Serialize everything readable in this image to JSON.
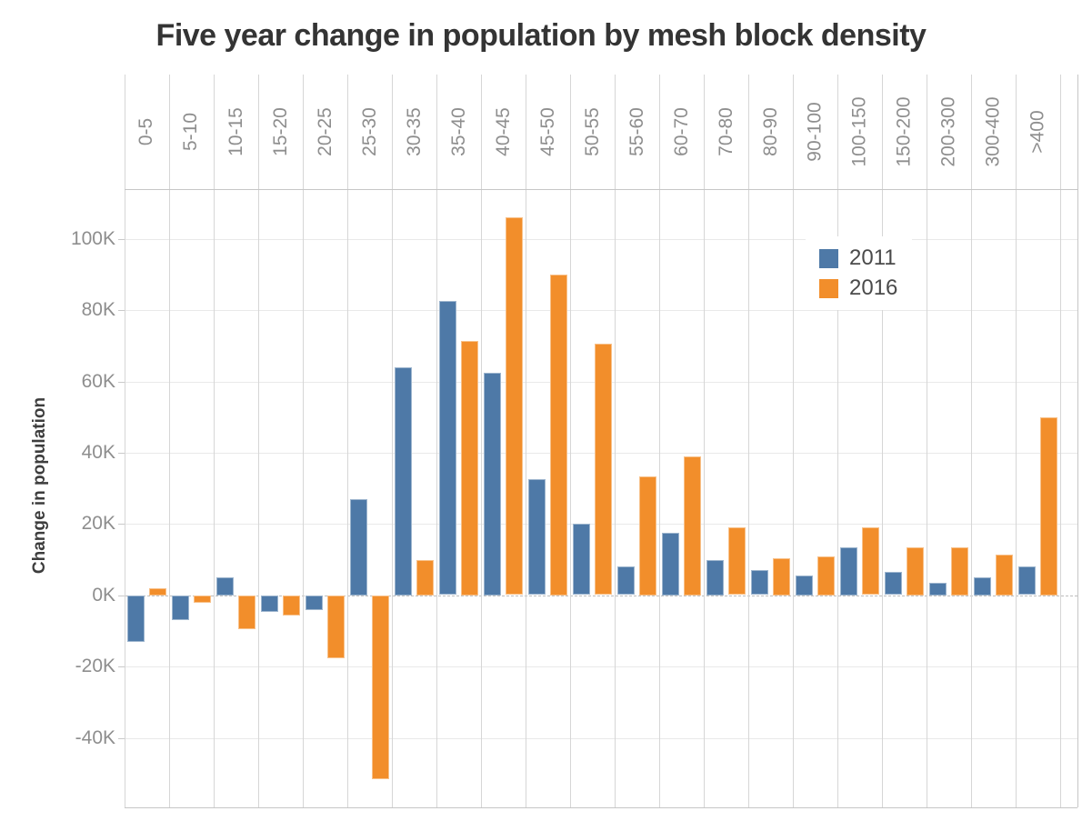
{
  "title": "Five year change in population by mesh block density",
  "colors": {
    "series_2011": "#4e79a7",
    "series_2016": "#f28e2b",
    "title_text": "#343434",
    "axis_label_text": "#3d3d3d",
    "tick_text": "#8e8e8e",
    "legend_text": "#4a4a4a",
    "gridline": "#e9e9e9",
    "column_separator": "#d6d6d6",
    "frame": "#c6c6c6",
    "zero_line": "#bdbdbd"
  },
  "chart_data": {
    "type": "bar",
    "title": "Five year change in population by mesh block density",
    "xlabel": "",
    "ylabel": "Change in population",
    "units": "thousands of people (K)",
    "grid": true,
    "legend_position": "inside-top-right",
    "categories": [
      "0-5",
      "5-10",
      "10-15",
      "15-20",
      "20-25",
      "25-30",
      "30-35",
      "35-40",
      "40-45",
      "45-50",
      "50-55",
      "55-60",
      "60-70",
      "70-80",
      "80-90",
      "90-100",
      "100-150",
      "150-200",
      "200-300",
      "300-400",
      ">400"
    ],
    "series": [
      {
        "name": "2011",
        "color": "#4e79a7",
        "values": [
          -13,
          -7,
          5,
          -4.5,
          -4,
          27,
          64,
          82.5,
          62.5,
          32.5,
          20,
          8,
          17.5,
          10,
          7,
          5.5,
          13.5,
          6.5,
          3.5,
          5,
          8
        ]
      },
      {
        "name": "2016",
        "color": "#f28e2b",
        "values": [
          2,
          -2,
          -9.5,
          -5.5,
          -17.5,
          -51.5,
          10,
          71.5,
          106,
          90,
          70.5,
          33.5,
          39,
          19,
          10.5,
          11,
          19,
          13.5,
          13.5,
          11.5,
          50
        ]
      }
    ],
    "y_ticks": [
      {
        "label": "100K",
        "value": 100
      },
      {
        "label": "80K",
        "value": 80
      },
      {
        "label": "60K",
        "value": 60
      },
      {
        "label": "40K",
        "value": 40
      },
      {
        "label": "20K",
        "value": 20
      },
      {
        "label": "0K",
        "value": 0
      },
      {
        "label": "-20K",
        "value": -20
      },
      {
        "label": "-40K",
        "value": -40
      }
    ],
    "ylim": [
      -59.5,
      114
    ]
  }
}
